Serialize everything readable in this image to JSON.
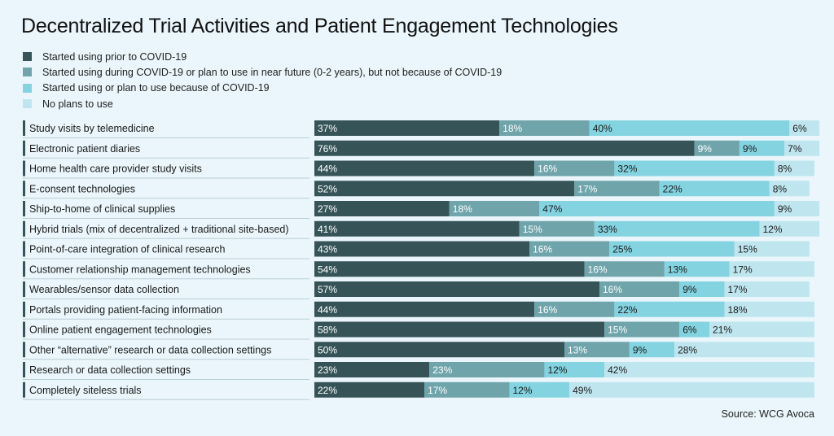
{
  "chart_data": {
    "type": "bar",
    "stacked": true,
    "orientation": "horizontal",
    "title": "Decentralized Trial Activities and Patient Engagement Technologies",
    "source": "Source: WCG Avoca",
    "value_format": "percent",
    "categories": [
      "Study visits by telemedicine",
      "Electronic patient diaries",
      "Home health care provider study visits",
      "E-consent technologies",
      "Ship-to-home of clinical supplies",
      "Hybrid trials (mix of decentralized + traditional site-based)",
      "Point-of-care integration of clinical research",
      "Customer relationship management technologies",
      "Wearables/sensor data collection",
      "Portals providing patient-facing information",
      "Online patient engagement technologies",
      "Other “alternative” research or data collection settings",
      "Research or data collection settings",
      "Completely siteless trials"
    ],
    "series": [
      {
        "name": "Started using prior to COVID-19",
        "color": "#365458",
        "label_color": "#ffffff",
        "values": [
          37,
          76,
          44,
          52,
          27,
          41,
          43,
          54,
          57,
          44,
          58,
          50,
          23,
          22
        ]
      },
      {
        "name": "Started using during COVID-19 or plan to use in near future (0-2 years), but not because of COVID-19",
        "color": "#6fa4ab",
        "label_color": "#ffffff",
        "values": [
          18,
          9,
          16,
          17,
          18,
          15,
          16,
          16,
          16,
          16,
          15,
          13,
          23,
          17
        ]
      },
      {
        "name": "Started using or plan to use because of COVID-19",
        "color": "#84d3e0",
        "label_color": "#1a1a1a",
        "values": [
          40,
          9,
          32,
          22,
          47,
          33,
          25,
          13,
          9,
          22,
          6,
          9,
          12,
          12
        ]
      },
      {
        "name": "No plans to use",
        "color": "#bfe6ef",
        "label_color": "#1a1a1a",
        "values": [
          6,
          7,
          8,
          8,
          9,
          12,
          15,
          17,
          17,
          18,
          21,
          28,
          42,
          49
        ]
      }
    ],
    "xlim": [
      0,
      100
    ],
    "grid": false,
    "legend_position": "top-left"
  }
}
